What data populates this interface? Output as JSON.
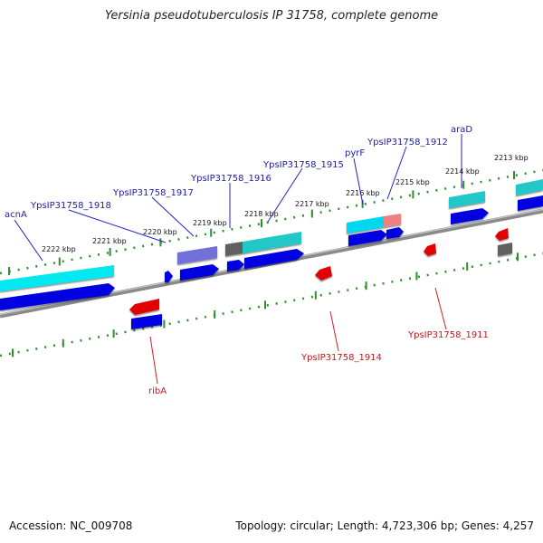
{
  "title": "Yersinia pseudotuberculosis IP 31758, complete genome",
  "footer": {
    "accession": "Accession: NC_009708",
    "summary": "Topology: circular; Length: 4,723,306 bp; Genes: 4,257"
  },
  "colors": {
    "backbone": "#8a8a8a",
    "tick": "#2f8f2f",
    "forward_label": "#2020a0",
    "reverse_label": "#c01818",
    "cds": "#0000e0",
    "gene_cyan": "#00e0e8",
    "gene_teal": "#20c0c0",
    "gene_purple": "#7070d8",
    "gene_pink": "#f08080",
    "gene_gray": "#606060",
    "reverse_gene": "#e00000"
  },
  "scale_labels": [
    "2213 kbp",
    "2214 kbp",
    "2215 kbp",
    "2216 kbp",
    "2217 kbp",
    "2218 kbp",
    "2219 kbp",
    "2220 kbp",
    "2221 kbp",
    "2222 kbp"
  ],
  "forward_labels": [
    "acnA",
    "YpsIP31758_1918",
    "YpsIP31758_1917",
    "YpsIP31758_1916",
    "YpsIP31758_1915",
    "pyrF",
    "YpsIP31758_1912",
    "araD"
  ],
  "reverse_labels": [
    "ribA",
    "YpsIP31758_1914",
    "YpsIP31758_1911"
  ]
}
